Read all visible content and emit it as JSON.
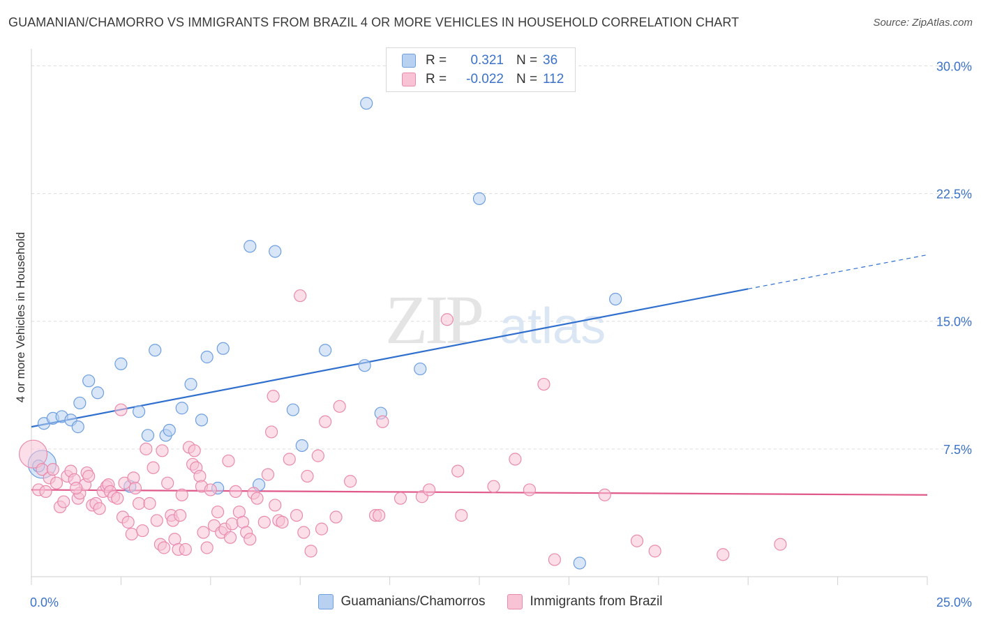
{
  "title": "GUAMANIAN/CHAMORRO VS IMMIGRANTS FROM BRAZIL 4 OR MORE VEHICLES IN HOUSEHOLD CORRELATION CHART",
  "source": "Source: ZipAtlas.com",
  "watermark": {
    "zip": "ZIP",
    "atlas": "atlas"
  },
  "colors": {
    "blue_fill": "#b9d1f0",
    "blue_stroke": "#6c9ee0",
    "blue_line": "#2f6fce",
    "pink_fill": "#f7c3d5",
    "pink_stroke": "#e98aac",
    "pink_line": "#e0578a",
    "grid": "#dcdcdc",
    "tick_label": "#3b72c8"
  },
  "legend_top": [
    {
      "series": "blue",
      "r_label": "R =",
      "r_value": "0.321",
      "n_label": "N =",
      "n_value": "36"
    },
    {
      "series": "pink",
      "r_label": "R =",
      "r_value": "-0.022",
      "n_label": "N =",
      "n_value": "112"
    }
  ],
  "chart_data": {
    "type": "scatter",
    "title": "GUAMANIAN/CHAMORRO VS IMMIGRANTS FROM BRAZIL 4 OR MORE VEHICLES IN HOUSEHOLD CORRELATION CHART",
    "xlabel": "",
    "ylabel": "4 or more Vehicles in Household",
    "xlim": [
      0,
      25
    ],
    "ylim": [
      0,
      31
    ],
    "x_tick_labels": [
      {
        "value": 0,
        "label": "0.0%"
      },
      {
        "value": 25,
        "label": "25.0%"
      }
    ],
    "y_tick_labels": [
      {
        "value": 7.5,
        "label": "7.5%"
      },
      {
        "value": 15,
        "label": "15.0%"
      },
      {
        "value": 22.5,
        "label": "22.5%"
      },
      {
        "value": 30,
        "label": "30.0%"
      }
    ],
    "y_grid": [
      7.5,
      15,
      22.5,
      30
    ],
    "series": [
      {
        "name": "Guamanians/Chamorros",
        "color": "blue",
        "trend": {
          "x0": 0,
          "y0": 8.8,
          "x1": 20,
          "y1": 16.9,
          "dash_to_x": 25,
          "dash_to_y": 18.9
        },
        "points": [
          [
            0.3,
            6.6,
            "big"
          ],
          [
            0.35,
            9.0
          ],
          [
            0.6,
            9.3
          ],
          [
            0.85,
            9.4
          ],
          [
            1.1,
            9.2
          ],
          [
            1.3,
            8.8
          ],
          [
            1.35,
            10.2
          ],
          [
            1.6,
            11.5
          ],
          [
            1.85,
            10.8
          ],
          [
            2.5,
            12.5
          ],
          [
            2.75,
            5.3
          ],
          [
            3.0,
            9.7
          ],
          [
            3.25,
            8.3
          ],
          [
            3.45,
            13.3
          ],
          [
            3.75,
            8.3
          ],
          [
            3.85,
            8.6
          ],
          [
            4.2,
            9.9
          ],
          [
            4.45,
            11.3
          ],
          [
            4.75,
            9.2
          ],
          [
            4.9,
            12.9
          ],
          [
            5.2,
            5.2
          ],
          [
            5.35,
            13.4
          ],
          [
            6.1,
            19.4
          ],
          [
            6.35,
            5.4
          ],
          [
            6.8,
            19.1
          ],
          [
            7.3,
            9.8
          ],
          [
            7.55,
            7.7
          ],
          [
            8.2,
            13.3
          ],
          [
            9.3,
            12.4
          ],
          [
            9.35,
            27.8
          ],
          [
            9.75,
            9.6
          ],
          [
            10.85,
            12.2
          ],
          [
            12.5,
            22.2
          ],
          [
            15.3,
            0.8
          ],
          [
            16.3,
            16.3
          ],
          [
            0.2,
            6.5
          ]
        ]
      },
      {
        "name": "Immigrants from Brazil",
        "color": "pink",
        "trend": {
          "x0": 0,
          "y0": 5.1,
          "x1": 25,
          "y1": 4.8
        },
        "points": [
          [
            0.05,
            7.2,
            "big"
          ],
          [
            0.2,
            5.1
          ],
          [
            0.3,
            6.3
          ],
          [
            0.4,
            5.0
          ],
          [
            0.5,
            5.8
          ],
          [
            0.6,
            6.3
          ],
          [
            0.7,
            5.5
          ],
          [
            0.8,
            4.1
          ],
          [
            0.9,
            4.4
          ],
          [
            1.0,
            5.9
          ],
          [
            1.1,
            6.2
          ],
          [
            1.2,
            5.7
          ],
          [
            1.3,
            4.6
          ],
          [
            1.35,
            4.9
          ],
          [
            1.5,
            5.4
          ],
          [
            1.55,
            6.1
          ],
          [
            1.6,
            5.9
          ],
          [
            1.7,
            4.2
          ],
          [
            1.8,
            4.3
          ],
          [
            1.9,
            4.0
          ],
          [
            2.0,
            5.0
          ],
          [
            2.1,
            5.3
          ],
          [
            2.15,
            5.4
          ],
          [
            2.2,
            5.0
          ],
          [
            2.3,
            4.7
          ],
          [
            2.4,
            4.6
          ],
          [
            2.5,
            9.8
          ],
          [
            2.55,
            3.5
          ],
          [
            2.6,
            5.5
          ],
          [
            2.7,
            3.2
          ],
          [
            2.8,
            2.5
          ],
          [
            2.85,
            5.8
          ],
          [
            2.9,
            5.2
          ],
          [
            3.0,
            4.3
          ],
          [
            3.1,
            2.7
          ],
          [
            3.2,
            7.5
          ],
          [
            3.3,
            4.3
          ],
          [
            3.4,
            6.4
          ],
          [
            3.5,
            3.3
          ],
          [
            3.6,
            1.9
          ],
          [
            3.65,
            7.4
          ],
          [
            3.7,
            1.7
          ],
          [
            3.8,
            5.5
          ],
          [
            3.9,
            3.6
          ],
          [
            3.95,
            3.3
          ],
          [
            4.0,
            2.2
          ],
          [
            4.1,
            1.6
          ],
          [
            4.15,
            3.6
          ],
          [
            4.2,
            4.8
          ],
          [
            4.3,
            1.6
          ],
          [
            4.4,
            7.6
          ],
          [
            4.5,
            6.6
          ],
          [
            4.55,
            7.4
          ],
          [
            4.6,
            6.4
          ],
          [
            4.7,
            5.9
          ],
          [
            4.75,
            5.3
          ],
          [
            4.8,
            2.6
          ],
          [
            4.9,
            1.7
          ],
          [
            5.0,
            5.1
          ],
          [
            5.1,
            3.0
          ],
          [
            5.2,
            3.8
          ],
          [
            5.3,
            2.6
          ],
          [
            5.4,
            2.8
          ],
          [
            5.5,
            6.8
          ],
          [
            5.55,
            2.3
          ],
          [
            5.6,
            3.1
          ],
          [
            5.7,
            5.0
          ],
          [
            5.8,
            3.8
          ],
          [
            5.9,
            3.2
          ],
          [
            6.0,
            2.6
          ],
          [
            6.1,
            2.2
          ],
          [
            6.2,
            4.9
          ],
          [
            6.3,
            4.6
          ],
          [
            6.5,
            3.2
          ],
          [
            6.6,
            6.0
          ],
          [
            6.7,
            8.5
          ],
          [
            6.75,
            10.6
          ],
          [
            6.8,
            4.2
          ],
          [
            6.9,
            3.3
          ],
          [
            7.0,
            3.2
          ],
          [
            7.2,
            6.9
          ],
          [
            7.4,
            3.6
          ],
          [
            7.5,
            16.5
          ],
          [
            7.6,
            2.6
          ],
          [
            7.7,
            5.9
          ],
          [
            7.8,
            1.5
          ],
          [
            8.0,
            7.1
          ],
          [
            8.1,
            2.8
          ],
          [
            8.2,
            9.1
          ],
          [
            8.5,
            3.5
          ],
          [
            8.6,
            10.0
          ],
          [
            8.9,
            5.6
          ],
          [
            9.6,
            3.6
          ],
          [
            9.7,
            3.6
          ],
          [
            9.8,
            9.1
          ],
          [
            10.3,
            4.6
          ],
          [
            10.9,
            4.7
          ],
          [
            11.1,
            5.1
          ],
          [
            11.6,
            15.1
          ],
          [
            11.9,
            6.2
          ],
          [
            12.0,
            3.6
          ],
          [
            12.9,
            5.3
          ],
          [
            13.5,
            6.9
          ],
          [
            13.9,
            5.1
          ],
          [
            14.3,
            11.3
          ],
          [
            14.6,
            1.0
          ],
          [
            16.0,
            4.8
          ],
          [
            16.9,
            2.1
          ],
          [
            17.4,
            1.5
          ],
          [
            19.3,
            1.3
          ],
          [
            20.9,
            1.9
          ],
          [
            1.25,
            5.2
          ]
        ]
      }
    ]
  },
  "legend_bottom": [
    {
      "series": "blue",
      "label": "Guamanians/Chamorros"
    },
    {
      "series": "pink",
      "label": "Immigrants from Brazil"
    }
  ]
}
